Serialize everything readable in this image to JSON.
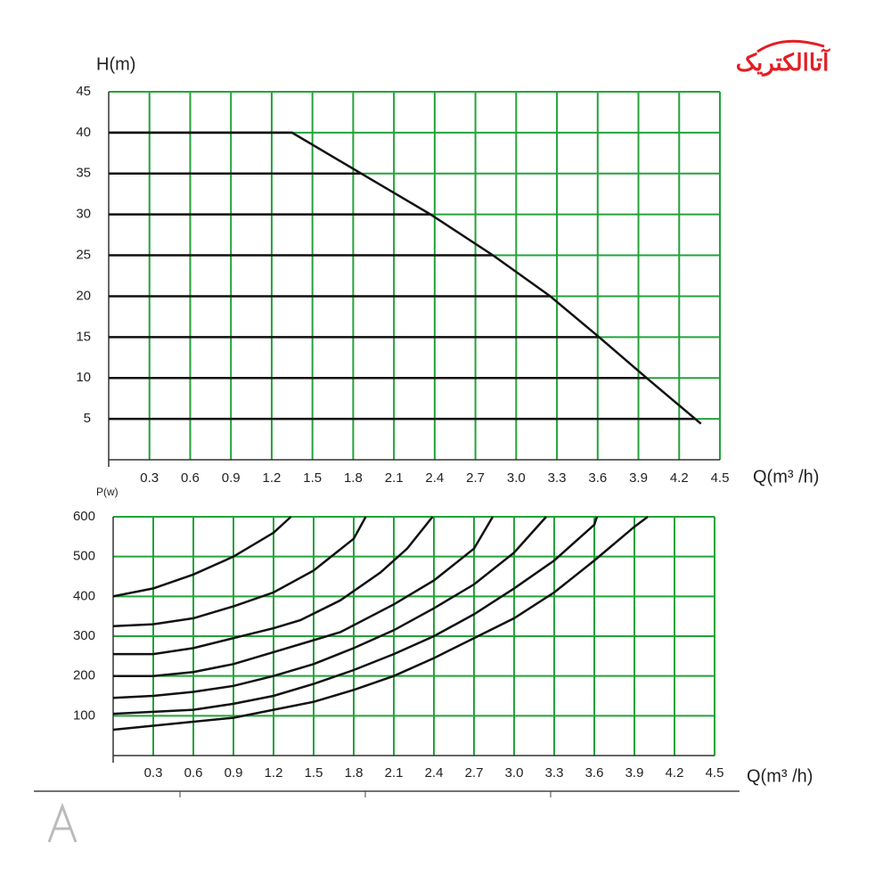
{
  "logo": "آتاالکتریک",
  "chart_data": [
    {
      "type": "line",
      "y_label": "H(m)",
      "x_label": "Q(m³ /h)",
      "xlim": [
        0,
        4.5
      ],
      "ylim": [
        0,
        45
      ],
      "xticks": [
        0.3,
        0.6,
        0.9,
        1.2,
        1.5,
        1.8,
        2.1,
        2.4,
        2.7,
        {
          "value": 3,
          "label": "3.0"
        },
        3.3,
        3.6,
        3.9,
        4.2,
        4.5
      ],
      "yticks": [
        5,
        10,
        15,
        20,
        25,
        30,
        35,
        40,
        45
      ],
      "grid": true,
      "grid_color": "#22a33a",
      "h_lines_to_curve": true,
      "series": [
        {
          "color": "#111111",
          "x": [
            0,
            1.35,
            1.86,
            2.37,
            2.83,
            3.25,
            3.61,
            3.96,
            4.36
          ],
          "values": [
            40,
            40,
            35,
            30,
            25,
            20,
            15,
            10,
            4.4
          ]
        }
      ]
    },
    {
      "type": "line",
      "y_label": "P(w)",
      "x_label": "Q(m³ /h)",
      "xlim": [
        0,
        4.5
      ],
      "ylim": [
        0,
        600
      ],
      "xticks": [
        0.3,
        0.6,
        0.9,
        1.2,
        1.5,
        1.8,
        2.1,
        2.4,
        2.7,
        {
          "value": 3,
          "label": "3.0"
        },
        3.3,
        3.6,
        3.9,
        4.2,
        4.5
      ],
      "yticks": [
        100,
        200,
        300,
        400,
        500,
        600
      ],
      "grid": true,
      "grid_color": "#22a33a",
      "series": [
        {
          "color": "#111111",
          "x": [
            0,
            0.3,
            0.6,
            0.9,
            1.2,
            1.33
          ],
          "values": [
            400,
            420,
            455,
            500,
            560,
            600
          ]
        },
        {
          "color": "#111111",
          "x": [
            0,
            0.3,
            0.6,
            0.9,
            1.2,
            1.5,
            1.8,
            1.89
          ],
          "values": [
            325,
            330,
            345,
            375,
            410,
            465,
            545,
            600
          ]
        },
        {
          "color": "#111111",
          "x": [
            0,
            0.3,
            0.6,
            0.9,
            1.2,
            1.4,
            1.7,
            2.0,
            2.2,
            2.39
          ],
          "values": [
            255,
            255,
            270,
            295,
            320,
            340,
            390,
            460,
            520,
            600
          ]
        },
        {
          "color": "#111111",
          "x": [
            0,
            0.3,
            0.6,
            0.9,
            1.2,
            1.5,
            1.7,
            2.1,
            2.4,
            2.7,
            2.84
          ],
          "values": [
            200,
            200,
            210,
            230,
            260,
            290,
            310,
            380,
            440,
            520,
            600
          ]
        },
        {
          "color": "#111111",
          "x": [
            0,
            0.3,
            0.6,
            0.9,
            1.2,
            1.5,
            1.8,
            2.1,
            2.4,
            2.7,
            3.0,
            3.24
          ],
          "values": [
            145,
            150,
            160,
            175,
            200,
            230,
            270,
            315,
            370,
            430,
            510,
            600
          ]
        },
        {
          "color": "#111111",
          "x": [
            0,
            0.3,
            0.6,
            0.9,
            1.2,
            1.5,
            1.8,
            2.1,
            2.4,
            2.7,
            3.0,
            3.3,
            3.6,
            3.62
          ],
          "values": [
            105,
            110,
            115,
            130,
            150,
            180,
            215,
            255,
            300,
            355,
            420,
            490,
            580,
            600
          ]
        },
        {
          "color": "#111111",
          "x": [
            0,
            0.3,
            0.6,
            0.9,
            1.2,
            1.5,
            1.8,
            2.1,
            2.4,
            2.7,
            3.0,
            3.3,
            3.6,
            3.9,
            4.0
          ],
          "values": [
            65,
            75,
            85,
            95,
            115,
            135,
            165,
            200,
            245,
            295,
            345,
            410,
            490,
            575,
            600
          ]
        }
      ]
    }
  ]
}
